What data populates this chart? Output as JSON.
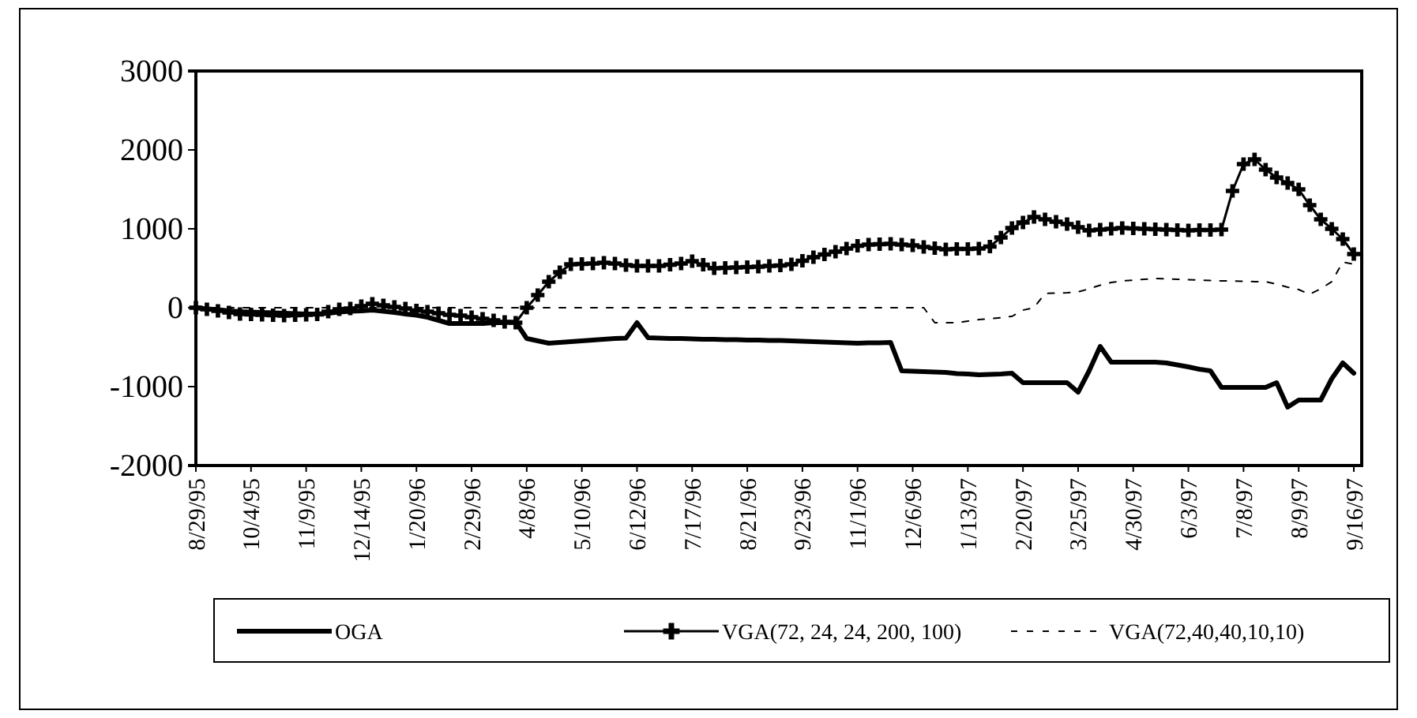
{
  "chart_data": {
    "type": "line",
    "categories": [
      "8/29/95",
      null,
      null,
      null,
      null,
      "10/4/95",
      null,
      null,
      null,
      null,
      "11/9/95",
      null,
      null,
      null,
      null,
      "12/14/95",
      null,
      null,
      null,
      null,
      "1/20/96",
      null,
      null,
      null,
      null,
      "2/29/96",
      null,
      null,
      null,
      null,
      "4/8/96",
      null,
      null,
      null,
      null,
      "5/10/96",
      null,
      null,
      null,
      null,
      "6/12/96",
      null,
      null,
      null,
      null,
      "7/17/96",
      null,
      null,
      null,
      null,
      "8/21/96",
      null,
      null,
      null,
      null,
      "9/23/96",
      null,
      null,
      null,
      null,
      "11/1/96",
      null,
      null,
      null,
      null,
      "12/6/96",
      null,
      null,
      null,
      null,
      "1/13/97",
      null,
      null,
      null,
      null,
      "2/20/97",
      null,
      null,
      null,
      null,
      "3/25/97",
      null,
      null,
      null,
      null,
      "4/30/97",
      null,
      null,
      null,
      null,
      "6/3/97",
      null,
      null,
      null,
      null,
      "7/8/97",
      null,
      null,
      null,
      null,
      "8/9/97",
      null,
      null,
      null,
      null,
      "9/16/97"
    ],
    "ylim": [
      -2000,
      3000
    ],
    "yticks": [
      -2000,
      -1000,
      0,
      1000,
      2000,
      3000
    ],
    "grid": false,
    "legend": "bottom",
    "series": [
      {
        "name": "OGA",
        "color": "#000000",
        "line_style": "solid",
        "marker": "none",
        "values": [
          0,
          -15,
          -25,
          -40,
          -50,
          -55,
          -60,
          -65,
          -70,
          -75,
          -80,
          -80,
          -70,
          -55,
          -45,
          -40,
          -30,
          -45,
          -60,
          -80,
          -95,
          -120,
          -160,
          -200,
          -200,
          -200,
          -200,
          -190,
          -190,
          -180,
          -390,
          -420,
          -450,
          -440,
          -430,
          -420,
          -410,
          -400,
          -390,
          -385,
          -190,
          -380,
          -385,
          -390,
          -390,
          -395,
          -400,
          -400,
          -405,
          -405,
          -410,
          -410,
          -415,
          -415,
          -420,
          -425,
          -430,
          -435,
          -440,
          -445,
          -450,
          -445,
          -445,
          -440,
          -800,
          -805,
          -810,
          -815,
          -820,
          -835,
          -840,
          -850,
          -845,
          -840,
          -830,
          -950,
          -950,
          -950,
          -950,
          -950,
          -1070,
          -800,
          -490,
          -690,
          -690,
          -690,
          -690,
          -690,
          -700,
          -725,
          -750,
          -780,
          -800,
          -1010,
          -1010,
          -1010,
          -1010,
          -1010,
          -950,
          -1260,
          -1170,
          -1170,
          -1170,
          -900,
          -700,
          -830
        ]
      },
      {
        "name": "VGA(72, 24, 24, 200, 100)",
        "color": "#000000",
        "line_style": "solid",
        "marker": "cross",
        "values": [
          0,
          -20,
          -40,
          -60,
          -80,
          -85,
          -90,
          -95,
          -100,
          -95,
          -90,
          -85,
          -50,
          -20,
          -10,
          20,
          50,
          30,
          10,
          -10,
          -35,
          -50,
          -70,
          -90,
          -100,
          -120,
          -140,
          -160,
          -180,
          -190,
          0,
          160,
          330,
          450,
          550,
          555,
          560,
          570,
          560,
          540,
          530,
          530,
          530,
          545,
          560,
          590,
          545,
          500,
          505,
          510,
          515,
          520,
          530,
          535,
          550,
          595,
          640,
          675,
          710,
          750,
          785,
          800,
          805,
          810,
          800,
          790,
          770,
          755,
          740,
          745,
          745,
          750,
          775,
          890,
          1010,
          1080,
          1150,
          1120,
          1090,
          1060,
          1020,
          980,
          990,
          1000,
          1010,
          1005,
          1000,
          995,
          990,
          985,
          980,
          985,
          985,
          990,
          1480,
          1820,
          1880,
          1750,
          1650,
          1580,
          1500,
          1300,
          1120,
          1000,
          870,
          680
        ]
      },
      {
        "name": "VGA(72,40,40,10,10)",
        "color": "#000000",
        "line_style": "dashed",
        "marker": "none",
        "values": [
          0,
          0,
          0,
          0,
          0,
          0,
          0,
          0,
          0,
          0,
          0,
          0,
          0,
          0,
          0,
          0,
          0,
          0,
          0,
          0,
          0,
          0,
          0,
          0,
          0,
          0,
          0,
          0,
          0,
          0,
          0,
          0,
          0,
          0,
          0,
          0,
          0,
          0,
          0,
          0,
          0,
          0,
          0,
          0,
          0,
          0,
          0,
          0,
          0,
          0,
          0,
          0,
          0,
          0,
          0,
          0,
          0,
          0,
          0,
          0,
          0,
          0,
          0,
          0,
          0,
          0,
          0,
          -190,
          -190,
          -190,
          -170,
          -150,
          -140,
          -125,
          -110,
          -30,
          0,
          180,
          185,
          190,
          200,
          240,
          285,
          320,
          340,
          350,
          360,
          370,
          365,
          360,
          355,
          350,
          345,
          340,
          340,
          335,
          330,
          330,
          300,
          260,
          230,
          170,
          240,
          330,
          580,
          550
        ]
      }
    ]
  }
}
